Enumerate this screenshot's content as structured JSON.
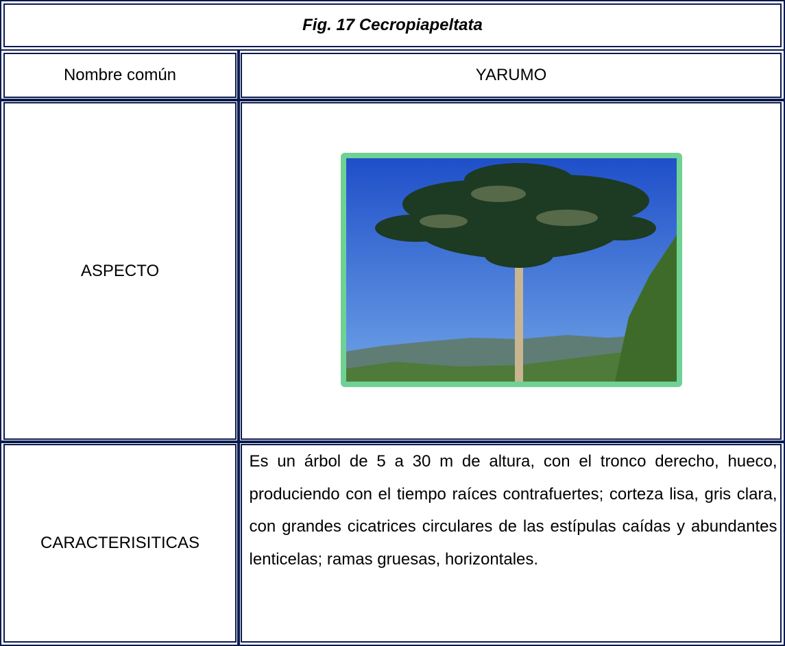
{
  "title": "Fig. 17 Cecropiapeltata",
  "table": {
    "rows": [
      [
        "Nombre común",
        "YARUMO"
      ],
      [
        "ASPECTO"
      ],
      [
        "CARACTERISITICAS",
        "Es un árbol de 5 a 30 m de altura, con el tronco derecho, hueco, produciendo con el tiempo raíces contrafuertes; corteza lisa, gris clara, con grandes cicatrices circulares de las estípulas caídas y abundantes lenticelas; ramas gruesas, horizontales."
      ]
    ]
  }
}
